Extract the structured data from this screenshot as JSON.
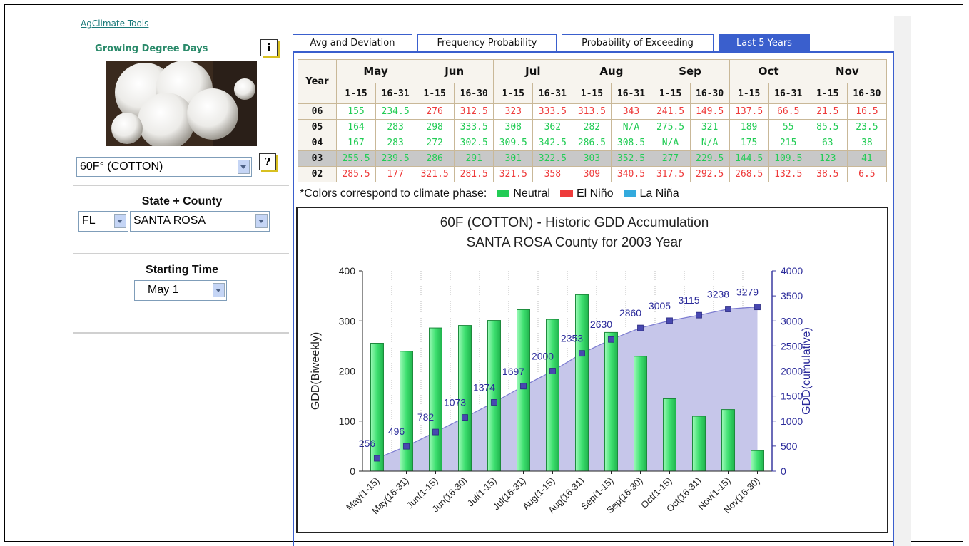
{
  "sidebar": {
    "link": "AgClimate Tools",
    "heading": "Growing Degree Days",
    "info_icon": "i",
    "help_icon": "?",
    "crop_select": "60F° (COTTON)",
    "location_heading": "State + County",
    "state_select": "FL",
    "county_select": "SANTA ROSA",
    "time_heading": "Starting Time",
    "time_select": "May 1"
  },
  "tabs": [
    "Avg and Deviation",
    "Frequency Probability",
    "Probability of Exceeding",
    "Last 5 Years"
  ],
  "active_tab": 3,
  "table": {
    "year_header": "Year",
    "months": [
      {
        "name": "May",
        "periods": [
          "1-15",
          "16-31"
        ]
      },
      {
        "name": "Jun",
        "periods": [
          "1-15",
          "16-30"
        ]
      },
      {
        "name": "Jul",
        "periods": [
          "1-15",
          "16-31"
        ]
      },
      {
        "name": "Aug",
        "periods": [
          "1-15",
          "16-31"
        ]
      },
      {
        "name": "Sep",
        "periods": [
          "1-15",
          "16-30"
        ]
      },
      {
        "name": "Oct",
        "periods": [
          "1-15",
          "16-31"
        ]
      },
      {
        "name": "Nov",
        "periods": [
          "1-15",
          "16-30"
        ]
      }
    ],
    "highlight_row": 3,
    "rows": [
      {
        "year": "06",
        "values": [
          "155",
          "234.5",
          "276",
          "312.5",
          "323",
          "333.5",
          "313.5",
          "343",
          "241.5",
          "149.5",
          "137.5",
          "66.5",
          "21.5",
          "16.5"
        ],
        "phases": [
          "Neutral",
          "Neutral",
          "El Niño",
          "El Niño",
          "El Niño",
          "El Niño",
          "El Niño",
          "El Niño",
          "El Niño",
          "El Niño",
          "El Niño",
          "El Niño",
          "El Niño",
          "El Niño"
        ]
      },
      {
        "year": "05",
        "values": [
          "164",
          "283",
          "298",
          "333.5",
          "308",
          "362",
          "282",
          "N/A",
          "275.5",
          "321",
          "189",
          "55",
          "85.5",
          "23.5"
        ],
        "phases": [
          "Neutral",
          "Neutral",
          "Neutral",
          "Neutral",
          "Neutral",
          "Neutral",
          "Neutral",
          "Neutral",
          "Neutral",
          "Neutral",
          "Neutral",
          "Neutral",
          "Neutral",
          "Neutral"
        ]
      },
      {
        "year": "04",
        "values": [
          "167",
          "283",
          "272",
          "302.5",
          "309.5",
          "342.5",
          "286.5",
          "308.5",
          "N/A",
          "N/A",
          "175",
          "215",
          "63",
          "38"
        ],
        "phases": [
          "Neutral",
          "Neutral",
          "Neutral",
          "Neutral",
          "Neutral",
          "Neutral",
          "Neutral",
          "Neutral",
          "Neutral",
          "Neutral",
          "Neutral",
          "Neutral",
          "Neutral",
          "Neutral"
        ]
      },
      {
        "year": "03",
        "values": [
          "255.5",
          "239.5",
          "286",
          "291",
          "301",
          "322.5",
          "303",
          "352.5",
          "277",
          "229.5",
          "144.5",
          "109.5",
          "123",
          "41"
        ],
        "phases": [
          "Neutral",
          "Neutral",
          "Neutral",
          "Neutral",
          "Neutral",
          "Neutral",
          "Neutral",
          "Neutral",
          "Neutral",
          "Neutral",
          "Neutral",
          "Neutral",
          "Neutral",
          "Neutral"
        ]
      },
      {
        "year": "02",
        "values": [
          "285.5",
          "177",
          "321.5",
          "281.5",
          "321.5",
          "358",
          "309",
          "340.5",
          "317.5",
          "292.5",
          "268.5",
          "132.5",
          "38.5",
          "6.5"
        ],
        "phases": [
          "El Niño",
          "El Niño",
          "El Niño",
          "El Niño",
          "El Niño",
          "El Niño",
          "El Niño",
          "El Niño",
          "El Niño",
          "El Niño",
          "El Niño",
          "El Niño",
          "El Niño",
          "El Niño"
        ]
      }
    ]
  },
  "legend": {
    "label": "*Colors correspond to climate phase:",
    "items": [
      {
        "name": "Neutral",
        "color": "#22cc55"
      },
      {
        "name": "El Niño",
        "color": "#ee3b3b"
      },
      {
        "name": "La Niña",
        "color": "#33aadd"
      }
    ]
  },
  "chart_data": {
    "type": "bar",
    "title": [
      "60F (COTTON) - Historic GDD Accumulation",
      "SANTA ROSA County for 2003 Year"
    ],
    "ylabel": "GDD(Biweekly)",
    "y2label": "GDD(cumulative)",
    "categories": [
      "May(1-15)",
      "May(16-31)",
      "Jun(1-15)",
      "Jun(16-30)",
      "Jul(1-15)",
      "Jul(16-31)",
      "Aug(1-15)",
      "Aug(16-31)",
      "Sep(1-15)",
      "Sep(16-30)",
      "Oct(1-15)",
      "Oct(16-31)",
      "Nov(1-15)",
      "Nov(16-30)"
    ],
    "series": [
      {
        "type": "bar",
        "color": "#3ee070",
        "values": [
          255.5,
          239.5,
          286,
          291,
          301,
          322.5,
          303,
          352.5,
          277,
          229.5,
          144.5,
          109.5,
          123,
          41
        ]
      },
      {
        "type": "line",
        "axis": "y2",
        "color": "#4848b0",
        "area_color": "#c6c6ea",
        "values": [
          256,
          496,
          782,
          1073,
          1374,
          1697,
          2000,
          2353,
          2630,
          2860,
          3005,
          3115,
          3238,
          3279
        ]
      }
    ],
    "ylim": [
      0,
      400
    ],
    "yticks": [
      0,
      100,
      200,
      300,
      400
    ],
    "y2lim": [
      0,
      4000
    ],
    "y2ticks": [
      0,
      500,
      1000,
      1500,
      2000,
      2500,
      3000,
      3500,
      4000
    ],
    "grid": "x"
  }
}
